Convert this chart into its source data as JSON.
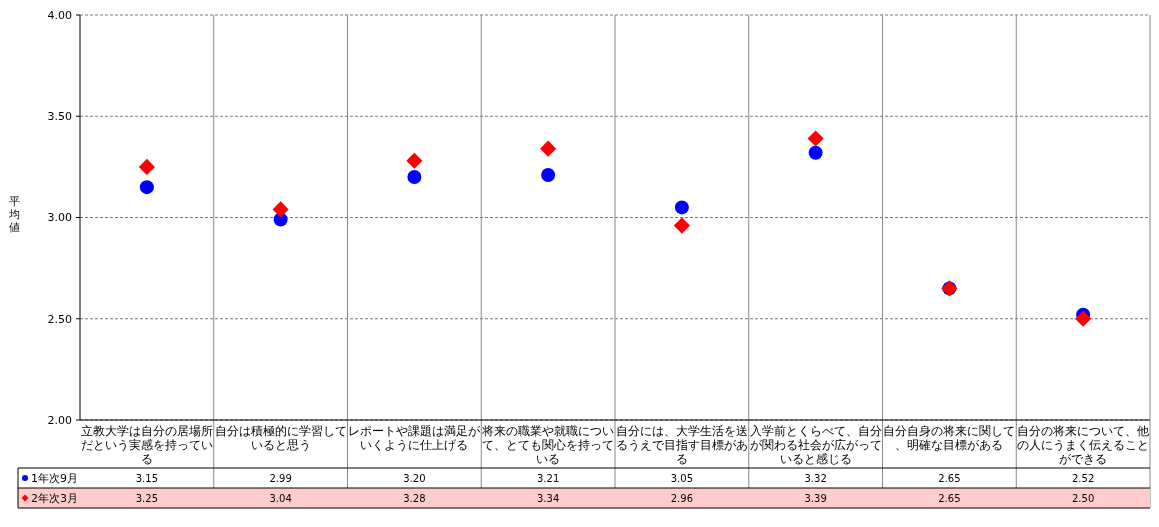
{
  "chart_data": {
    "type": "scatter",
    "ylabel": "平均値",
    "categories": [
      "立教大学は自分の居場所だという実感を持っている",
      "自分は積極的に学習していると思う",
      "レポートや課題は満足がいくように仕上げる",
      "将来の職業や就職について、とても関心を持っている",
      "自分には、大学生活を送るうえで目指す目標がある",
      "入学前とくらべて、自分が関わる社会が広がっていると感じる",
      "自分自身の将来に関して、明確な目標がある",
      "自分の将来について、他の人にうまく伝えることができる"
    ],
    "series": [
      {
        "name": "1年次9月",
        "color": "#0000ff",
        "marker": "circle",
        "values": [
          3.15,
          2.99,
          3.2,
          3.21,
          3.05,
          3.32,
          2.65,
          2.52
        ],
        "value_labels": [
          "3.15",
          "2.99",
          "3.20",
          "3.21",
          "3.05",
          "3.32",
          "2.65",
          "2.52"
        ]
      },
      {
        "name": "2年次3月",
        "color": "#ff0000",
        "marker": "diamond",
        "values": [
          3.25,
          3.04,
          3.28,
          3.34,
          2.96,
          3.39,
          2.65,
          2.5
        ],
        "value_labels": [
          "3.25",
          "3.04",
          "3.28",
          "3.34",
          "2.96",
          "3.39",
          "2.65",
          "2.50"
        ]
      }
    ],
    "ylim": [
      2,
      4
    ],
    "yticks": [
      {
        "value": 2,
        "label": "2.00"
      },
      {
        "value": 2.5,
        "label": "2.50"
      },
      {
        "value": 3,
        "label": "3.00"
      },
      {
        "value": 3.5,
        "label": "3.50"
      },
      {
        "value": 4,
        "label": "4.00"
      }
    ],
    "grid": "y",
    "legend": "bottom left"
  }
}
